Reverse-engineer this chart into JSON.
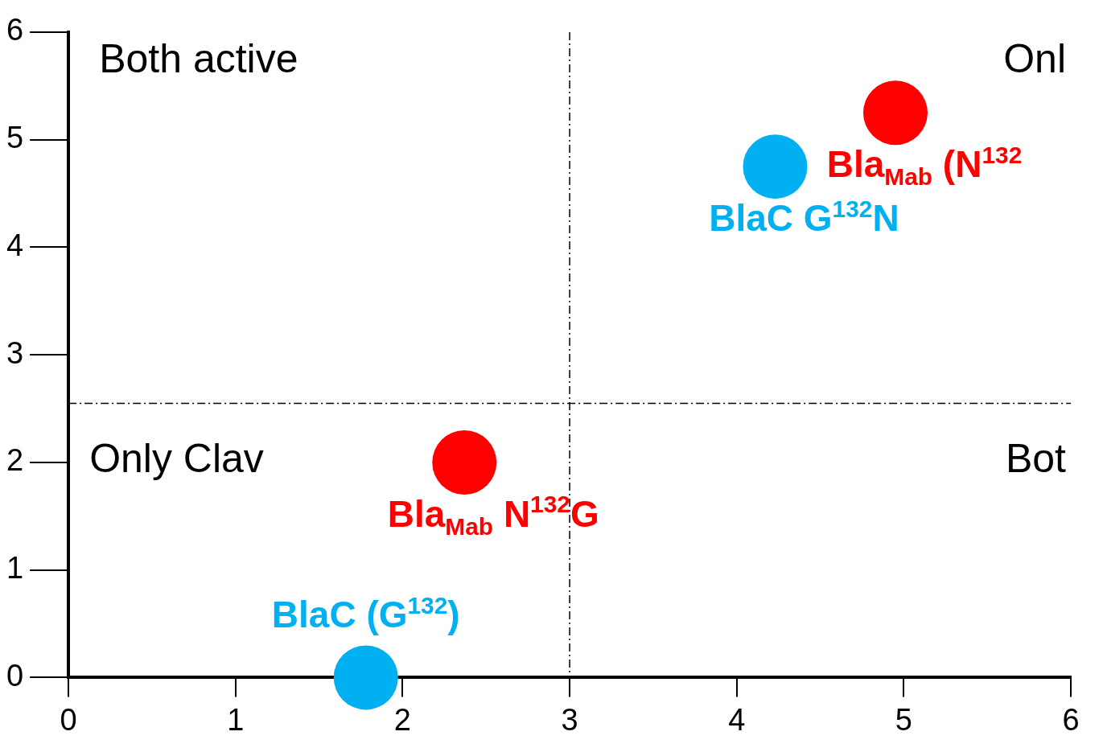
{
  "chart_data": {
    "type": "scatter",
    "xlim": [
      0,
      6
    ],
    "ylim": [
      0,
      6
    ],
    "xticks": [
      0,
      1,
      2,
      3,
      4,
      5,
      6
    ],
    "yticks": [
      0,
      1,
      2,
      3,
      4,
      5,
      6
    ],
    "grid": false,
    "legend": false,
    "marker": "circle",
    "series": [
      {
        "name": "BlaC (G$^{132}$)",
        "color": "#00b0f0",
        "x": [
          1.78
        ],
        "values": [
          0
        ]
      },
      {
        "name": "Bla$_{Mab}$ N$^{132}$G",
        "color": "#ff0000",
        "x": [
          2.37
        ],
        "values": [
          2.0
        ]
      },
      {
        "name": "BlaC G$^{132}$N",
        "color": "#00b0f0",
        "x": [
          4.23
        ],
        "values": [
          4.75
        ]
      },
      {
        "name": "Bla$_{Mab}$ (N$^{132}$",
        "color": "#ff0000",
        "x": [
          4.95
        ],
        "values": [
          5.25
        ]
      }
    ],
    "ref_lines": [
      {
        "axis": "x",
        "value": 3,
        "line_style": "dashdot"
      },
      {
        "axis": "y",
        "value": 2.55,
        "line_style": "dashdot"
      }
    ],
    "annotations": [
      "Both active",
      "Onl",
      "Only Clav",
      "Bot"
    ]
  }
}
